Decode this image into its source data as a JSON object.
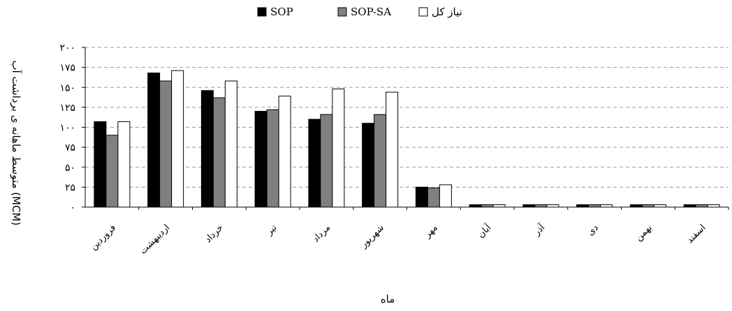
{
  "chart_data": {
    "type": "bar",
    "title": "",
    "xlabel": "ماه",
    "ylabel": "متوسط ماهانه ی برداشت آب (MCM)",
    "ylim": [
      0,
      200
    ],
    "yticks": [
      "۰",
      "۲۵",
      "۵۰",
      "۷۵",
      "۱۰۰",
      "۱۲۵",
      "۱۵۰",
      "۱۷۵",
      "۲۰۰"
    ],
    "ytick_values": [
      0,
      25,
      50,
      75,
      100,
      125,
      150,
      175,
      200
    ],
    "grid": "horizontal dashed",
    "legend_position": "top-center",
    "categories": [
      "فروردین",
      "اردیبهشت",
      "خرداد",
      "تیر",
      "مرداد",
      "شهریور",
      "مهر",
      "آبان",
      "آذر",
      "دی",
      "بهمن",
      "اسفند"
    ],
    "series": [
      {
        "name": "SOP",
        "color": "#000000",
        "values": [
          107,
          168,
          146,
          120,
          110,
          105,
          25,
          3,
          3,
          3,
          3,
          3
        ]
      },
      {
        "name": "SOP-SA",
        "color": "#808080",
        "values": [
          90,
          158,
          137,
          122,
          116,
          116,
          24,
          3,
          3,
          3,
          3,
          3
        ]
      },
      {
        "name": "نیاز کل",
        "color": "#ffffff",
        "values": [
          107,
          171,
          158,
          139,
          148,
          144,
          28,
          3,
          3,
          3,
          3,
          3
        ]
      }
    ]
  }
}
